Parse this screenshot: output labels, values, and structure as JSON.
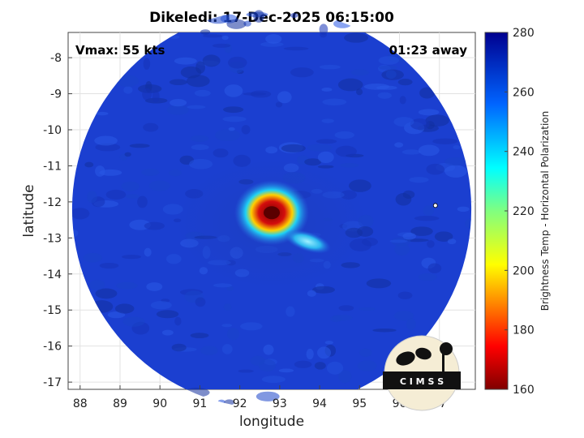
{
  "title": "Dikeledi: 17-Dec-2025 06:15:00",
  "annotations": {
    "vmax": "Vmax: 55 kts",
    "time_away": "01:23 away"
  },
  "logo_text": "C I M S S",
  "colors": {
    "background_cold": "#1a3ccc",
    "eye_hot": "#d40d0d",
    "eye_ring": "#2bc3f0"
  },
  "chart_data": {
    "type": "heatmap",
    "title": "Dikeledi: 17-Dec-2025 06:15:00",
    "xlabel": "longitude",
    "ylabel": "latitude",
    "xlim": [
      87.7,
      97.9
    ],
    "ylim": [
      -17.2,
      -7.3
    ],
    "xticks": [
      88,
      89,
      90,
      91,
      92,
      93,
      94,
      95,
      96,
      97
    ],
    "yticks": [
      -8,
      -9,
      -10,
      -11,
      -12,
      -13,
      -14,
      -15,
      -16,
      -17
    ],
    "grid": true,
    "colorbar": {
      "label": "Brightness Temp - Horizontal Polarization",
      "range": [
        160,
        280
      ],
      "ticks": [
        280,
        260,
        240,
        220,
        200,
        180,
        160
      ],
      "colormap": "jet"
    },
    "swath": {
      "center": [
        92.8,
        -12.2
      ],
      "radius_deg": 5.0
    },
    "features": [
      {
        "name": "eye",
        "lon": 92.8,
        "lat": -12.3,
        "tb": 165
      },
      {
        "name": "eye ring",
        "lon": 92.8,
        "lat": -12.3,
        "tb": 235
      },
      {
        "name": "rainband",
        "lon": 93.7,
        "lat": -13.1,
        "tb": 240
      }
    ],
    "background_tb": 265
  }
}
